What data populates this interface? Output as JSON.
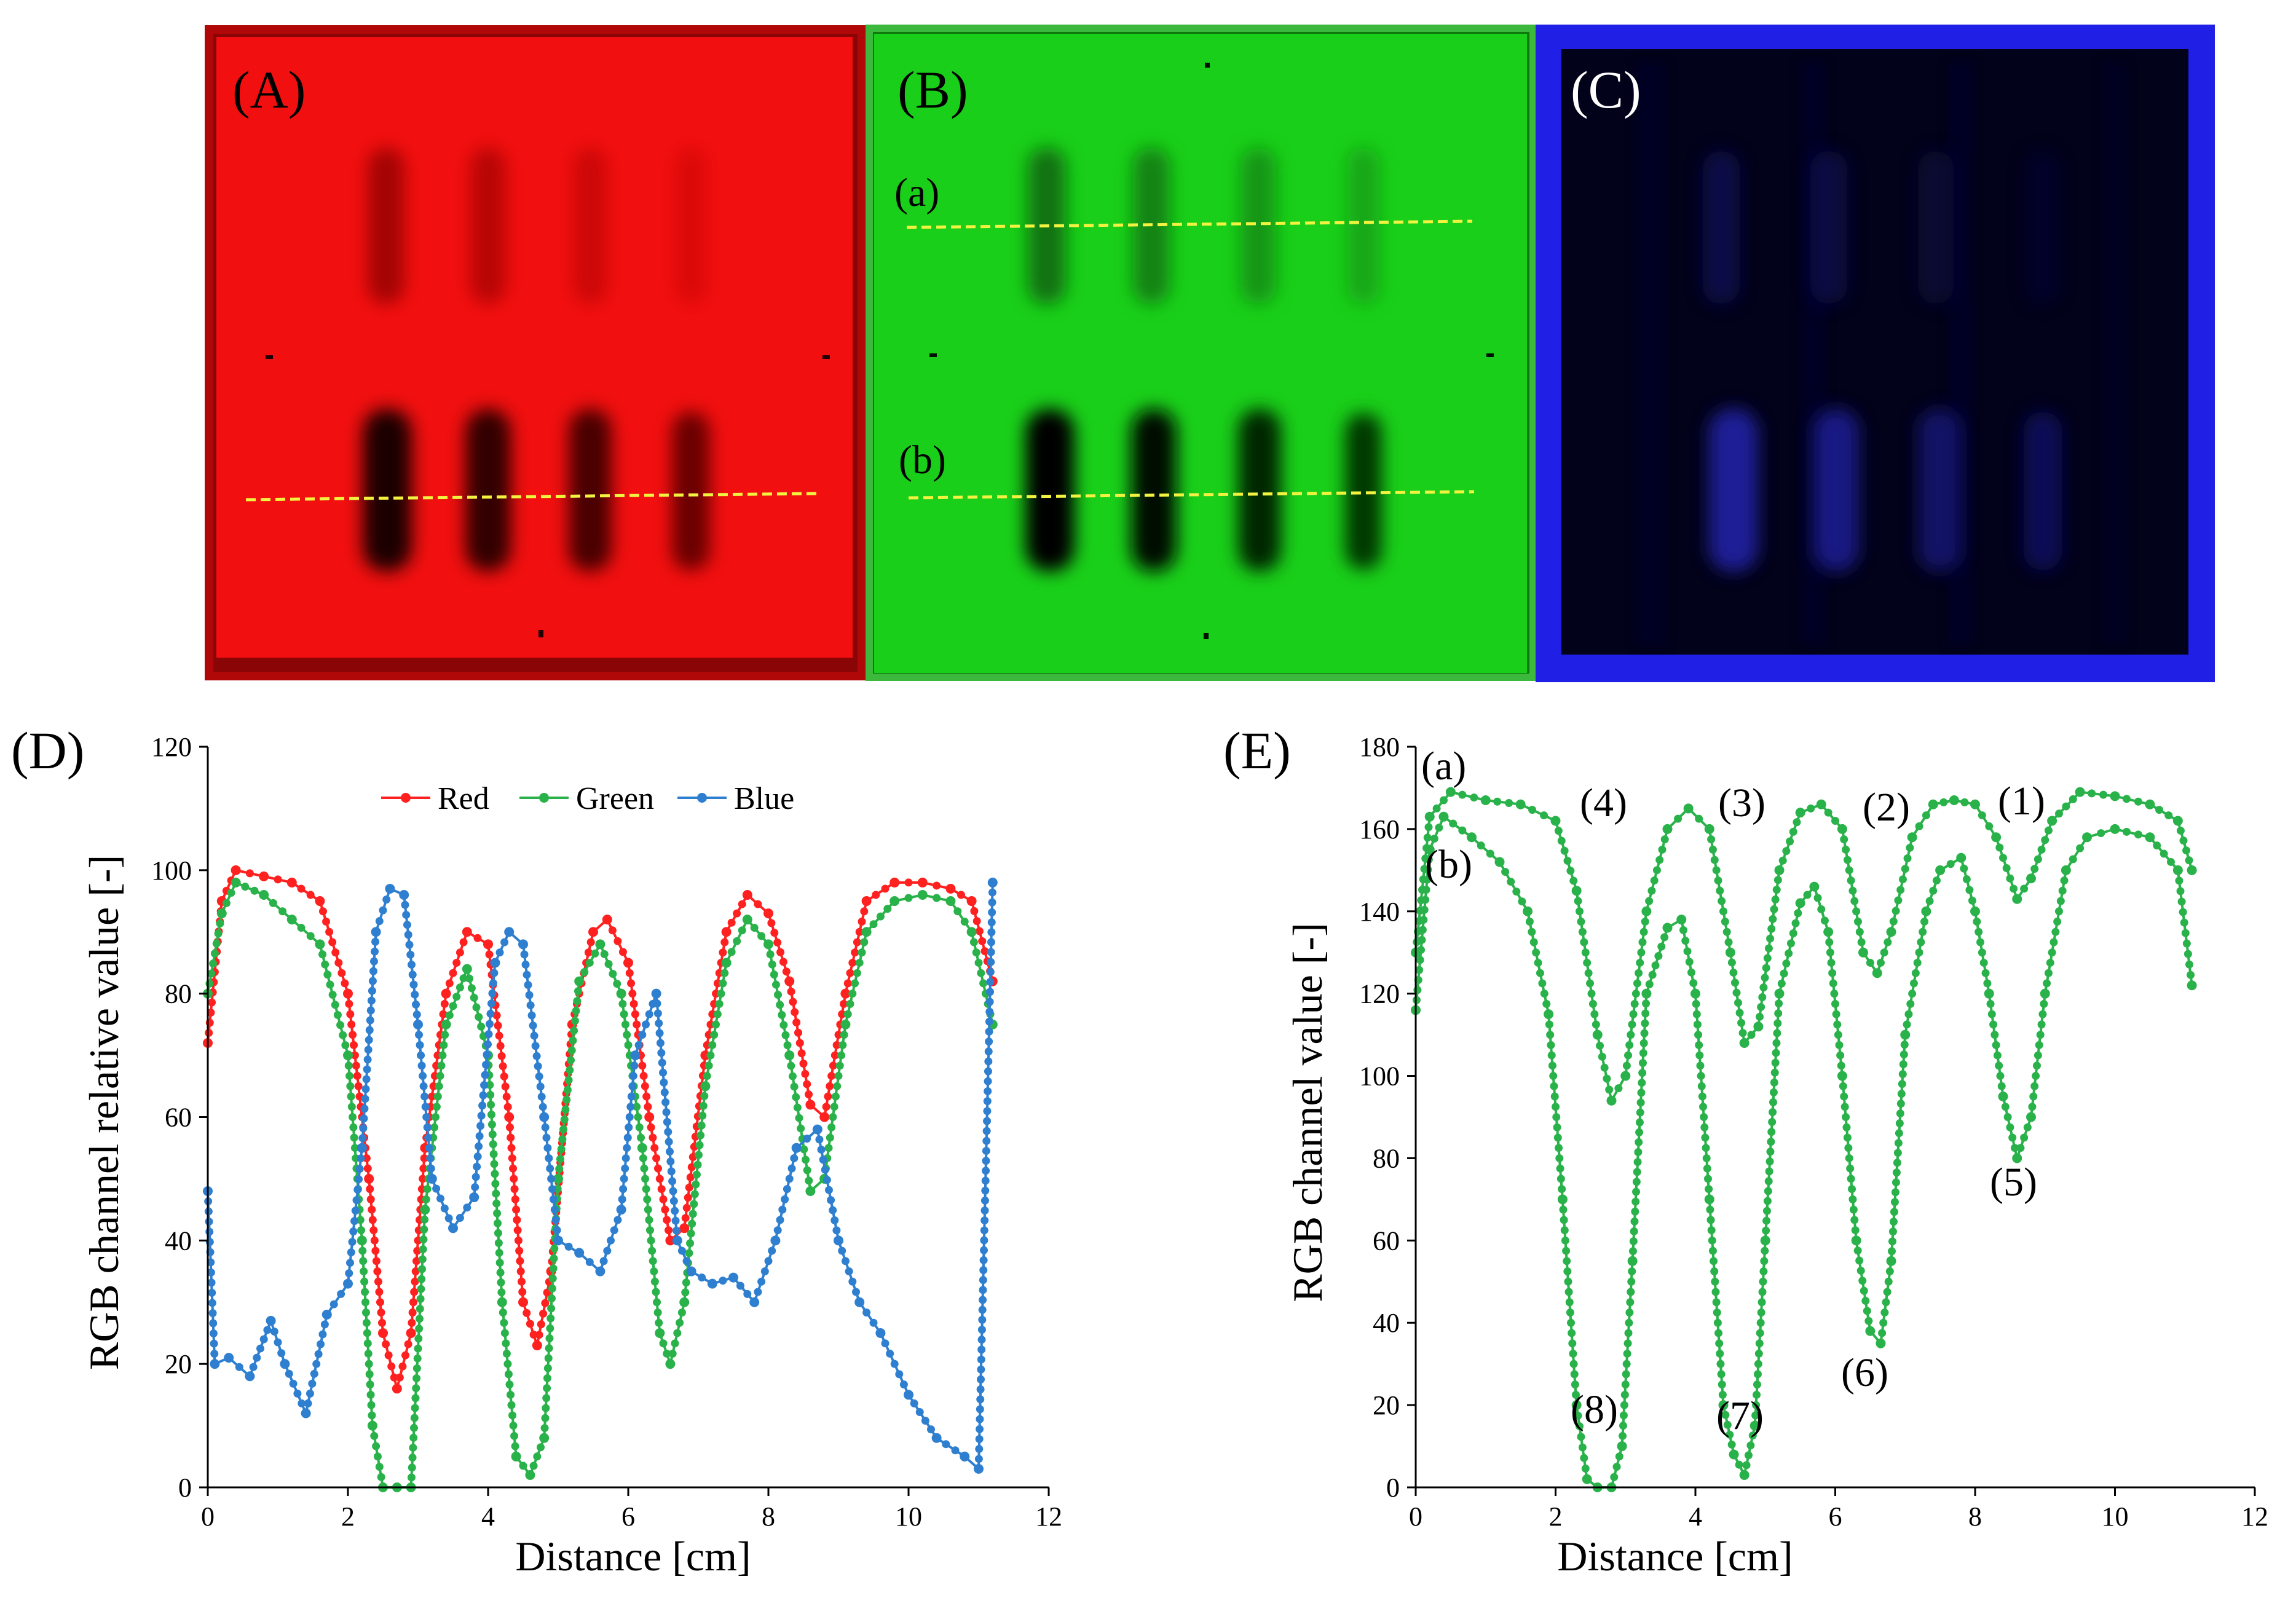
{
  "panels": {
    "A": "(A)",
    "B": "(B)",
    "C": "(C)",
    "D": "(D)",
    "E": "(E)"
  },
  "photo_annotations": {
    "a": "(a)",
    "b": "(b)"
  },
  "colors": {
    "red_plate": "#f20f0f",
    "green_plate": "#19cf19",
    "blue_plate_frame": "#1f1fe6",
    "blue_plate_inner": "#02021a",
    "line_red": "#ff2020",
    "line_red_connector": "#f4a06a",
    "line_green": "#2ab24a",
    "line_green_connector": "#a8a8a8",
    "line_blue": "#2f7fd0",
    "line_E": "#2ab24a",
    "yellow_dash": "#f2f240"
  },
  "chart_data": [
    {
      "id": "D",
      "type": "line",
      "title": "",
      "xlabel": "Distance [cm]",
      "ylabel": "RGB channel relative value [-]",
      "xlim": [
        0,
        12
      ],
      "ylim": [
        0,
        120
      ],
      "xticks": [
        0,
        2,
        4,
        6,
        8,
        10,
        12
      ],
      "yticks": [
        0,
        20,
        40,
        60,
        80,
        100,
        120
      ],
      "legend": {
        "position": "top-center",
        "entries": [
          "Red",
          "Green",
          "Blue"
        ]
      },
      "series": [
        {
          "name": "Red",
          "color": "#ff2020",
          "x": [
            0,
            0.2,
            0.4,
            0.8,
            1.2,
            1.6,
            2.0,
            2.3,
            2.5,
            2.7,
            2.9,
            3.1,
            3.4,
            3.7,
            4.0,
            4.3,
            4.5,
            4.7,
            4.9,
            5.2,
            5.5,
            5.7,
            6.0,
            6.3,
            6.6,
            6.8,
            7.1,
            7.4,
            7.7,
            8.0,
            8.3,
            8.6,
            8.8,
            9.1,
            9.4,
            9.8,
            10.2,
            10.6,
            10.9,
            11.2
          ],
          "y": [
            72,
            95,
            100,
            99,
            98,
            95,
            80,
            50,
            25,
            16,
            25,
            55,
            80,
            90,
            88,
            60,
            30,
            23,
            35,
            75,
            90,
            92,
            85,
            60,
            40,
            42,
            70,
            90,
            96,
            93,
            82,
            62,
            60,
            80,
            95,
            98,
            98,
            97,
            95,
            82
          ]
        },
        {
          "name": "Green",
          "color": "#2ab24a",
          "x": [
            0,
            0.2,
            0.4,
            0.8,
            1.2,
            1.6,
            2.0,
            2.2,
            2.35,
            2.5,
            2.7,
            2.9,
            3.1,
            3.4,
            3.7,
            4.0,
            4.2,
            4.4,
            4.6,
            4.8,
            5.0,
            5.3,
            5.6,
            5.9,
            6.2,
            6.45,
            6.6,
            6.8,
            7.1,
            7.4,
            7.7,
            8.0,
            8.3,
            8.6,
            8.8,
            9.1,
            9.4,
            9.8,
            10.2,
            10.6,
            10.9,
            11.2
          ],
          "y": [
            80,
            93,
            98,
            96,
            92,
            88,
            70,
            40,
            10,
            0,
            0,
            0,
            45,
            75,
            84,
            70,
            30,
            5,
            2,
            8,
            50,
            82,
            88,
            80,
            55,
            25,
            20,
            30,
            65,
            85,
            92,
            88,
            70,
            48,
            50,
            75,
            90,
            95,
            96,
            95,
            90,
            75
          ]
        },
        {
          "name": "Blue",
          "color": "#2f7fd0",
          "x": [
            0,
            0.1,
            0.3,
            0.6,
            0.9,
            1.1,
            1.4,
            1.7,
            2.0,
            2.2,
            2.4,
            2.6,
            2.8,
            3.0,
            3.2,
            3.5,
            3.8,
            4.1,
            4.3,
            4.5,
            4.8,
            5.0,
            5.3,
            5.6,
            5.9,
            6.1,
            6.4,
            6.7,
            6.9,
            7.2,
            7.5,
            7.8,
            8.1,
            8.4,
            8.7,
            9.0,
            9.3,
            9.6,
            10.0,
            10.4,
            10.8,
            11.0,
            11.2
          ],
          "y": [
            48,
            20,
            21,
            18,
            27,
            20,
            12,
            28,
            33,
            55,
            90,
            97,
            96,
            75,
            50,
            42,
            47,
            85,
            90,
            88,
            60,
            40,
            38,
            35,
            45,
            70,
            80,
            40,
            35,
            33,
            34,
            30,
            40,
            55,
            58,
            40,
            30,
            25,
            15,
            8,
            5,
            3,
            98
          ]
        }
      ]
    },
    {
      "id": "E",
      "type": "line",
      "title": "",
      "xlabel": "Distance [cm]",
      "ylabel": "RGB channel value [-]",
      "xlim": [
        0,
        12
      ],
      "ylim": [
        0,
        180
      ],
      "xticks": [
        0,
        2,
        4,
        6,
        8,
        10,
        12
      ],
      "yticks": [
        0,
        20,
        40,
        60,
        80,
        100,
        120,
        140,
        160,
        180
      ],
      "series": [
        {
          "name": "(a)",
          "color": "#2ab24a",
          "x": [
            0,
            0.2,
            0.5,
            1.0,
            1.5,
            2.0,
            2.3,
            2.6,
            2.8,
            3.0,
            3.3,
            3.6,
            3.9,
            4.2,
            4.5,
            4.7,
            4.9,
            5.2,
            5.5,
            5.8,
            6.1,
            6.4,
            6.6,
            6.8,
            7.1,
            7.4,
            7.7,
            8.0,
            8.3,
            8.6,
            8.8,
            9.1,
            9.5,
            10.0,
            10.5,
            10.9,
            11.1
          ],
          "y": [
            130,
            163,
            169,
            167,
            166,
            162,
            145,
            110,
            94,
            100,
            140,
            160,
            165,
            160,
            130,
            108,
            112,
            150,
            164,
            166,
            160,
            130,
            125,
            135,
            158,
            166,
            167,
            166,
            158,
            143,
            148,
            162,
            169,
            168,
            166,
            162,
            150
          ]
        },
        {
          "name": "(b)",
          "color": "#2ab24a",
          "x": [
            0,
            0.2,
            0.4,
            0.8,
            1.2,
            1.6,
            1.9,
            2.1,
            2.3,
            2.45,
            2.6,
            2.8,
            2.95,
            3.1,
            3.3,
            3.6,
            3.8,
            4.0,
            4.2,
            4.4,
            4.55,
            4.7,
            4.85,
            5.0,
            5.2,
            5.5,
            5.7,
            5.9,
            6.1,
            6.3,
            6.5,
            6.65,
            6.8,
            7.0,
            7.3,
            7.5,
            7.8,
            8.0,
            8.2,
            8.4,
            8.6,
            8.8,
            9.0,
            9.3,
            9.6,
            10.0,
            10.5,
            10.9,
            11.1
          ],
          "y": [
            116,
            155,
            163,
            158,
            152,
            140,
            115,
            70,
            20,
            2,
            0,
            0,
            10,
            55,
            120,
            136,
            138,
            120,
            70,
            20,
            8,
            3,
            15,
            60,
            120,
            142,
            146,
            135,
            100,
            60,
            38,
            35,
            55,
            110,
            140,
            150,
            153,
            140,
            120,
            95,
            80,
            90,
            120,
            150,
            158,
            160,
            158,
            150,
            122
          ]
        }
      ],
      "annotations": [
        "(a)",
        "(b)",
        "(1)",
        "(2)",
        "(3)",
        "(4)",
        "(5)",
        "(6)",
        "(7)",
        "(8)"
      ]
    }
  ]
}
